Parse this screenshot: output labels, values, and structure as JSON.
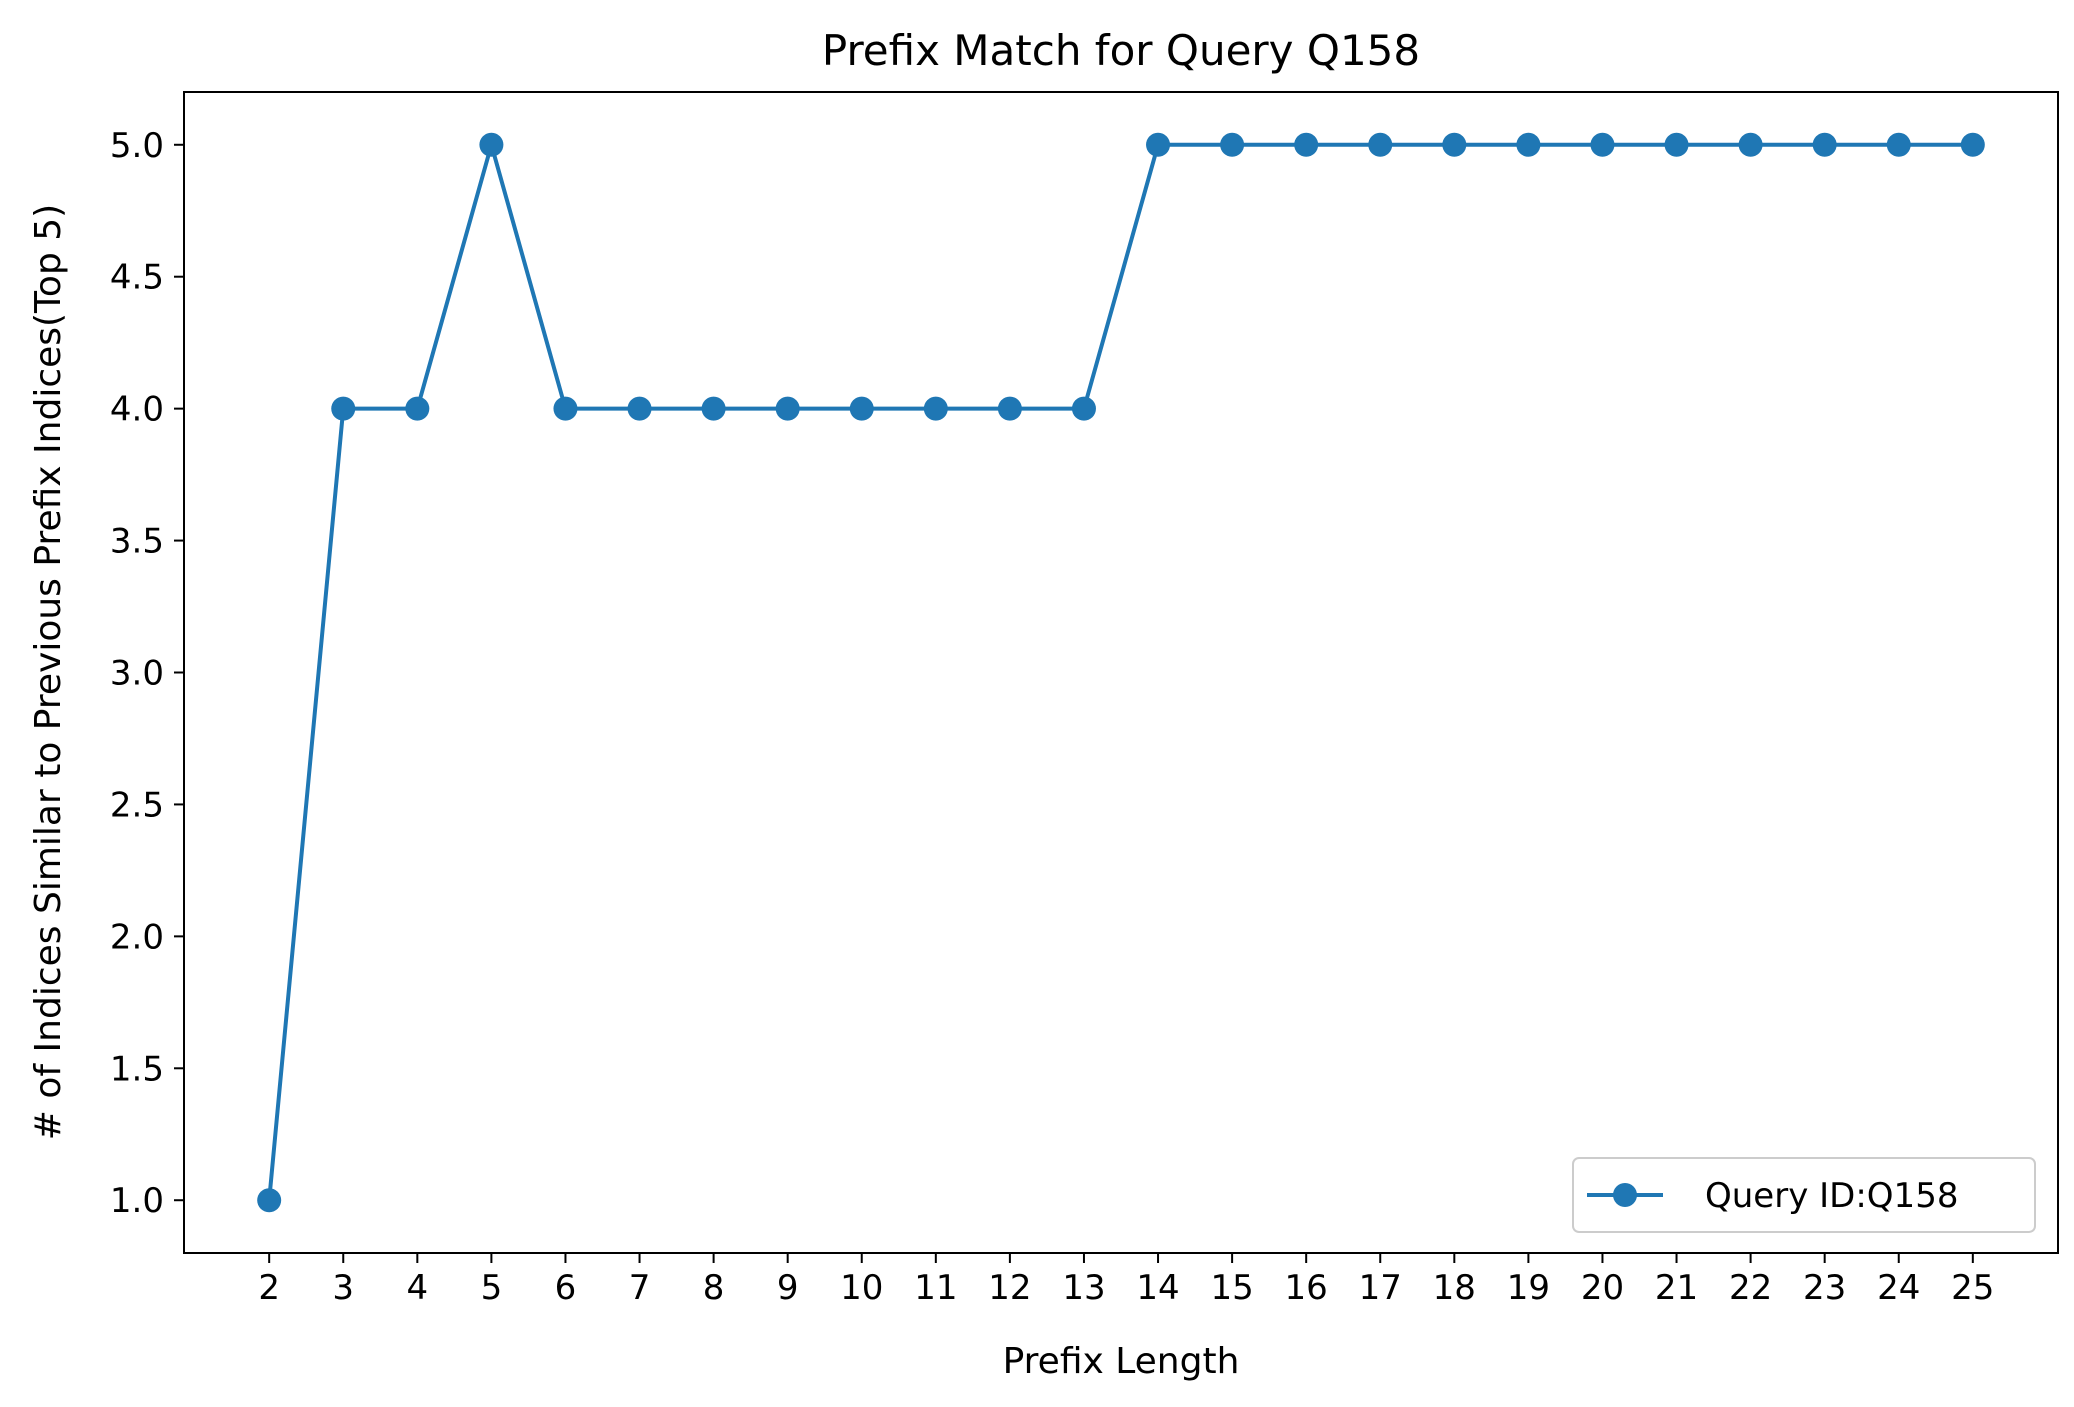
{
  "chart_data": {
    "type": "line",
    "title": "Prefix Match for Query Q158",
    "xlabel": "Prefix Length",
    "ylabel": "# of Indices Similar to Previous Prefix Indices(Top 5)",
    "x": [
      2,
      3,
      4,
      5,
      6,
      7,
      8,
      9,
      10,
      11,
      12,
      13,
      14,
      15,
      16,
      17,
      18,
      19,
      20,
      21,
      22,
      23,
      24,
      25
    ],
    "series": [
      {
        "name": "Query ID:Q158",
        "values": [
          1,
          4,
          4,
          5,
          4,
          4,
          4,
          4,
          4,
          4,
          4,
          4,
          5,
          5,
          5,
          5,
          5,
          5,
          5,
          5,
          5,
          5,
          5,
          5
        ],
        "color": "#1f77b4",
        "marker": "circle"
      }
    ],
    "xlim": [
      0.85,
      26.15
    ],
    "ylim": [
      0.8,
      5.2
    ],
    "yticks": [
      "1.0",
      "1.5",
      "2.0",
      "2.5",
      "3.0",
      "3.5",
      "4.0",
      "4.5",
      "5.0"
    ],
    "xticks": [
      "2",
      "3",
      "4",
      "5",
      "6",
      "7",
      "8",
      "9",
      "10",
      "11",
      "12",
      "13",
      "14",
      "15",
      "16",
      "17",
      "18",
      "19",
      "20",
      "21",
      "22",
      "23",
      "24",
      "25"
    ],
    "grid": false,
    "legend_position": "lower-right"
  }
}
